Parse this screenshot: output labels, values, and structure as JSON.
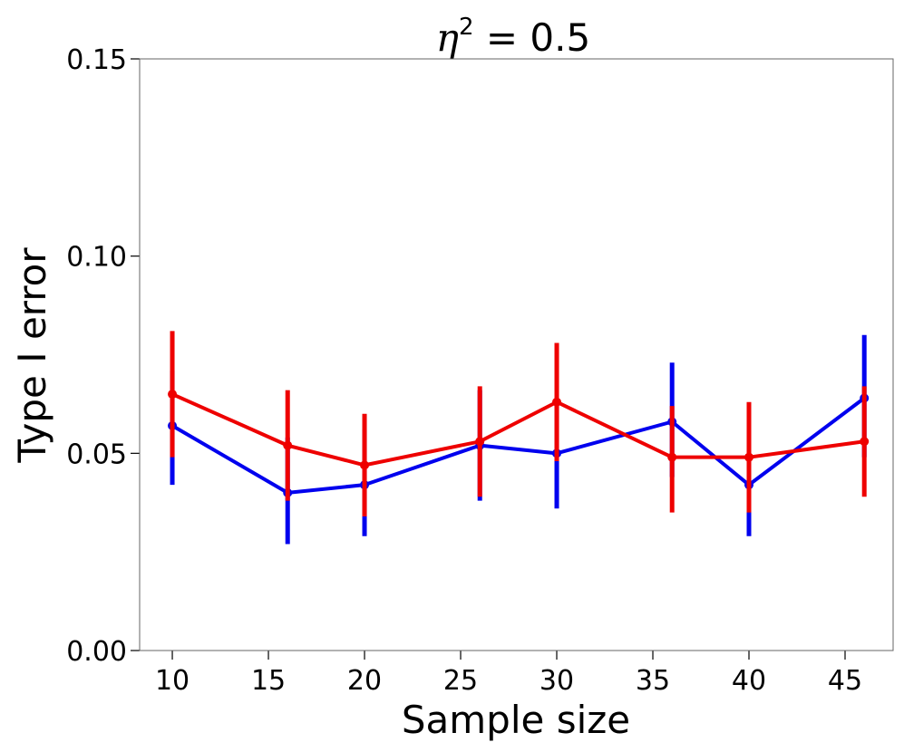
{
  "chart_data": {
    "type": "line",
    "title": {
      "symbol": "η",
      "superscript": "2",
      "rest": " = 0.5"
    },
    "xlabel": "Sample size",
    "ylabel": "Type I error",
    "xlim": [
      8.3,
      47.5
    ],
    "ylim": [
      0.0,
      0.15
    ],
    "xticks": [
      10,
      15,
      20,
      25,
      30,
      35,
      40,
      45
    ],
    "yticks": [
      0.0,
      0.05,
      0.1,
      0.15
    ],
    "ytick_labels": [
      "0.00",
      "0.05",
      "0.10",
      "0.15"
    ],
    "x": [
      10,
      16,
      20,
      26,
      30,
      36,
      40,
      46
    ],
    "series": [
      {
        "name": "blue",
        "color": "#0000ee",
        "values": [
          0.057,
          0.04,
          0.042,
          0.052,
          0.05,
          0.058,
          0.042,
          0.064
        ],
        "err_low": [
          0.042,
          0.027,
          0.029,
          0.038,
          0.036,
          0.044,
          0.029,
          0.049
        ],
        "err_high": [
          0.071,
          0.054,
          0.056,
          0.066,
          0.064,
          0.073,
          0.056,
          0.08
        ]
      },
      {
        "name": "red",
        "color": "#ee0000",
        "values": [
          0.065,
          0.052,
          0.047,
          0.053,
          0.063,
          0.049,
          0.049,
          0.053
        ],
        "err_low": [
          0.049,
          0.038,
          0.034,
          0.039,
          0.048,
          0.035,
          0.035,
          0.039
        ],
        "err_high": [
          0.081,
          0.066,
          0.06,
          0.067,
          0.078,
          0.062,
          0.063,
          0.067
        ]
      }
    ]
  }
}
